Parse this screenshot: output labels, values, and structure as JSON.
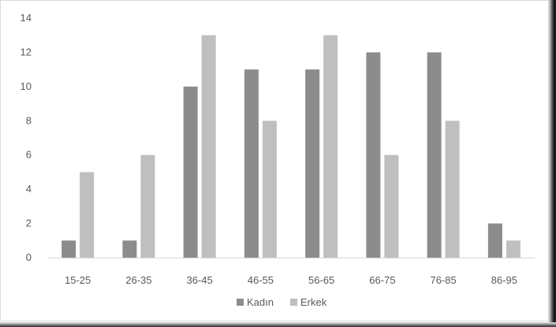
{
  "chart_data": {
    "type": "bar",
    "categories": [
      "15-25",
      "26-35",
      "36-45",
      "46-55",
      "56-65",
      "66-75",
      "76-85",
      "86-95"
    ],
    "series": [
      {
        "name": "Kadın",
        "color": "#8c8c8c",
        "values": [
          1,
          1,
          10,
          11,
          11,
          12,
          12,
          2
        ]
      },
      {
        "name": "Erkek",
        "color": "#bfbfbf",
        "values": [
          5,
          6,
          13,
          8,
          13,
          6,
          8,
          1
        ]
      }
    ],
    "title": "",
    "xlabel": "",
    "ylabel": "",
    "ylim": [
      0,
      14
    ],
    "yticks": [
      0,
      2,
      4,
      6,
      8,
      10,
      12,
      14
    ],
    "grid": false,
    "legend_position": "bottom"
  }
}
